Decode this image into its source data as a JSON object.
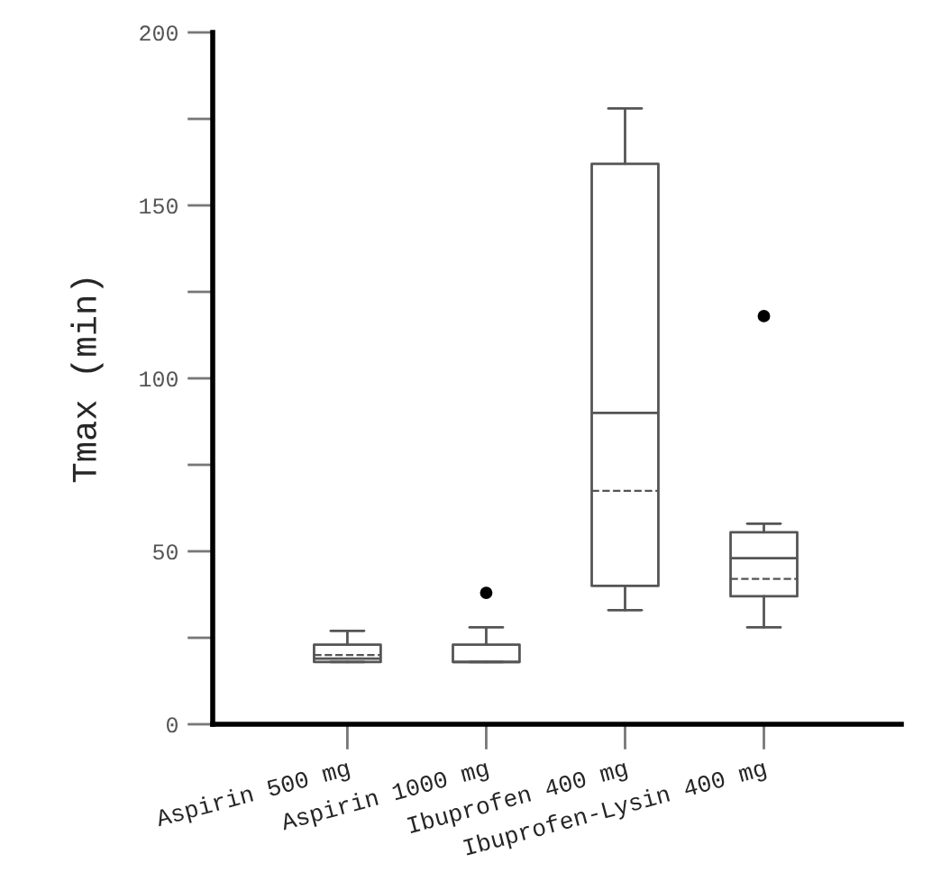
{
  "chart_data": {
    "type": "box",
    "ylabel": "Tmax (min)",
    "categories": [
      "Aspirin 500 mg",
      "Aspirin 1000 mg",
      "Ibuprofen 400 mg",
      "Ibuprofen-Lysin 400 mg"
    ],
    "boxes": [
      {
        "low": 18,
        "q1": 18,
        "median": 19,
        "q3": 23,
        "high": 27,
        "mean": 20
      },
      {
        "low": 18,
        "q1": 18,
        "median": 18,
        "q3": 23,
        "high": 28,
        "outliers": [
          38
        ]
      },
      {
        "low": 33,
        "q1": 40,
        "median": 90,
        "q3": 162,
        "high": 178,
        "mean": 67.5
      },
      {
        "low": 28,
        "q1": 37,
        "median": 48,
        "q3": 55.5,
        "high": 58,
        "mean": 42,
        "outliers": [
          118
        ]
      }
    ],
    "color": "#555555",
    "ylim": [
      0,
      200
    ],
    "yticks": [
      0,
      {
        "value": 25,
        "label": null
      },
      50,
      {
        "value": 75,
        "label": null
      },
      100,
      {
        "value": 125,
        "label": null
      },
      150,
      {
        "value": 175,
        "label": null
      },
      200
    ],
    "grid": false
  }
}
